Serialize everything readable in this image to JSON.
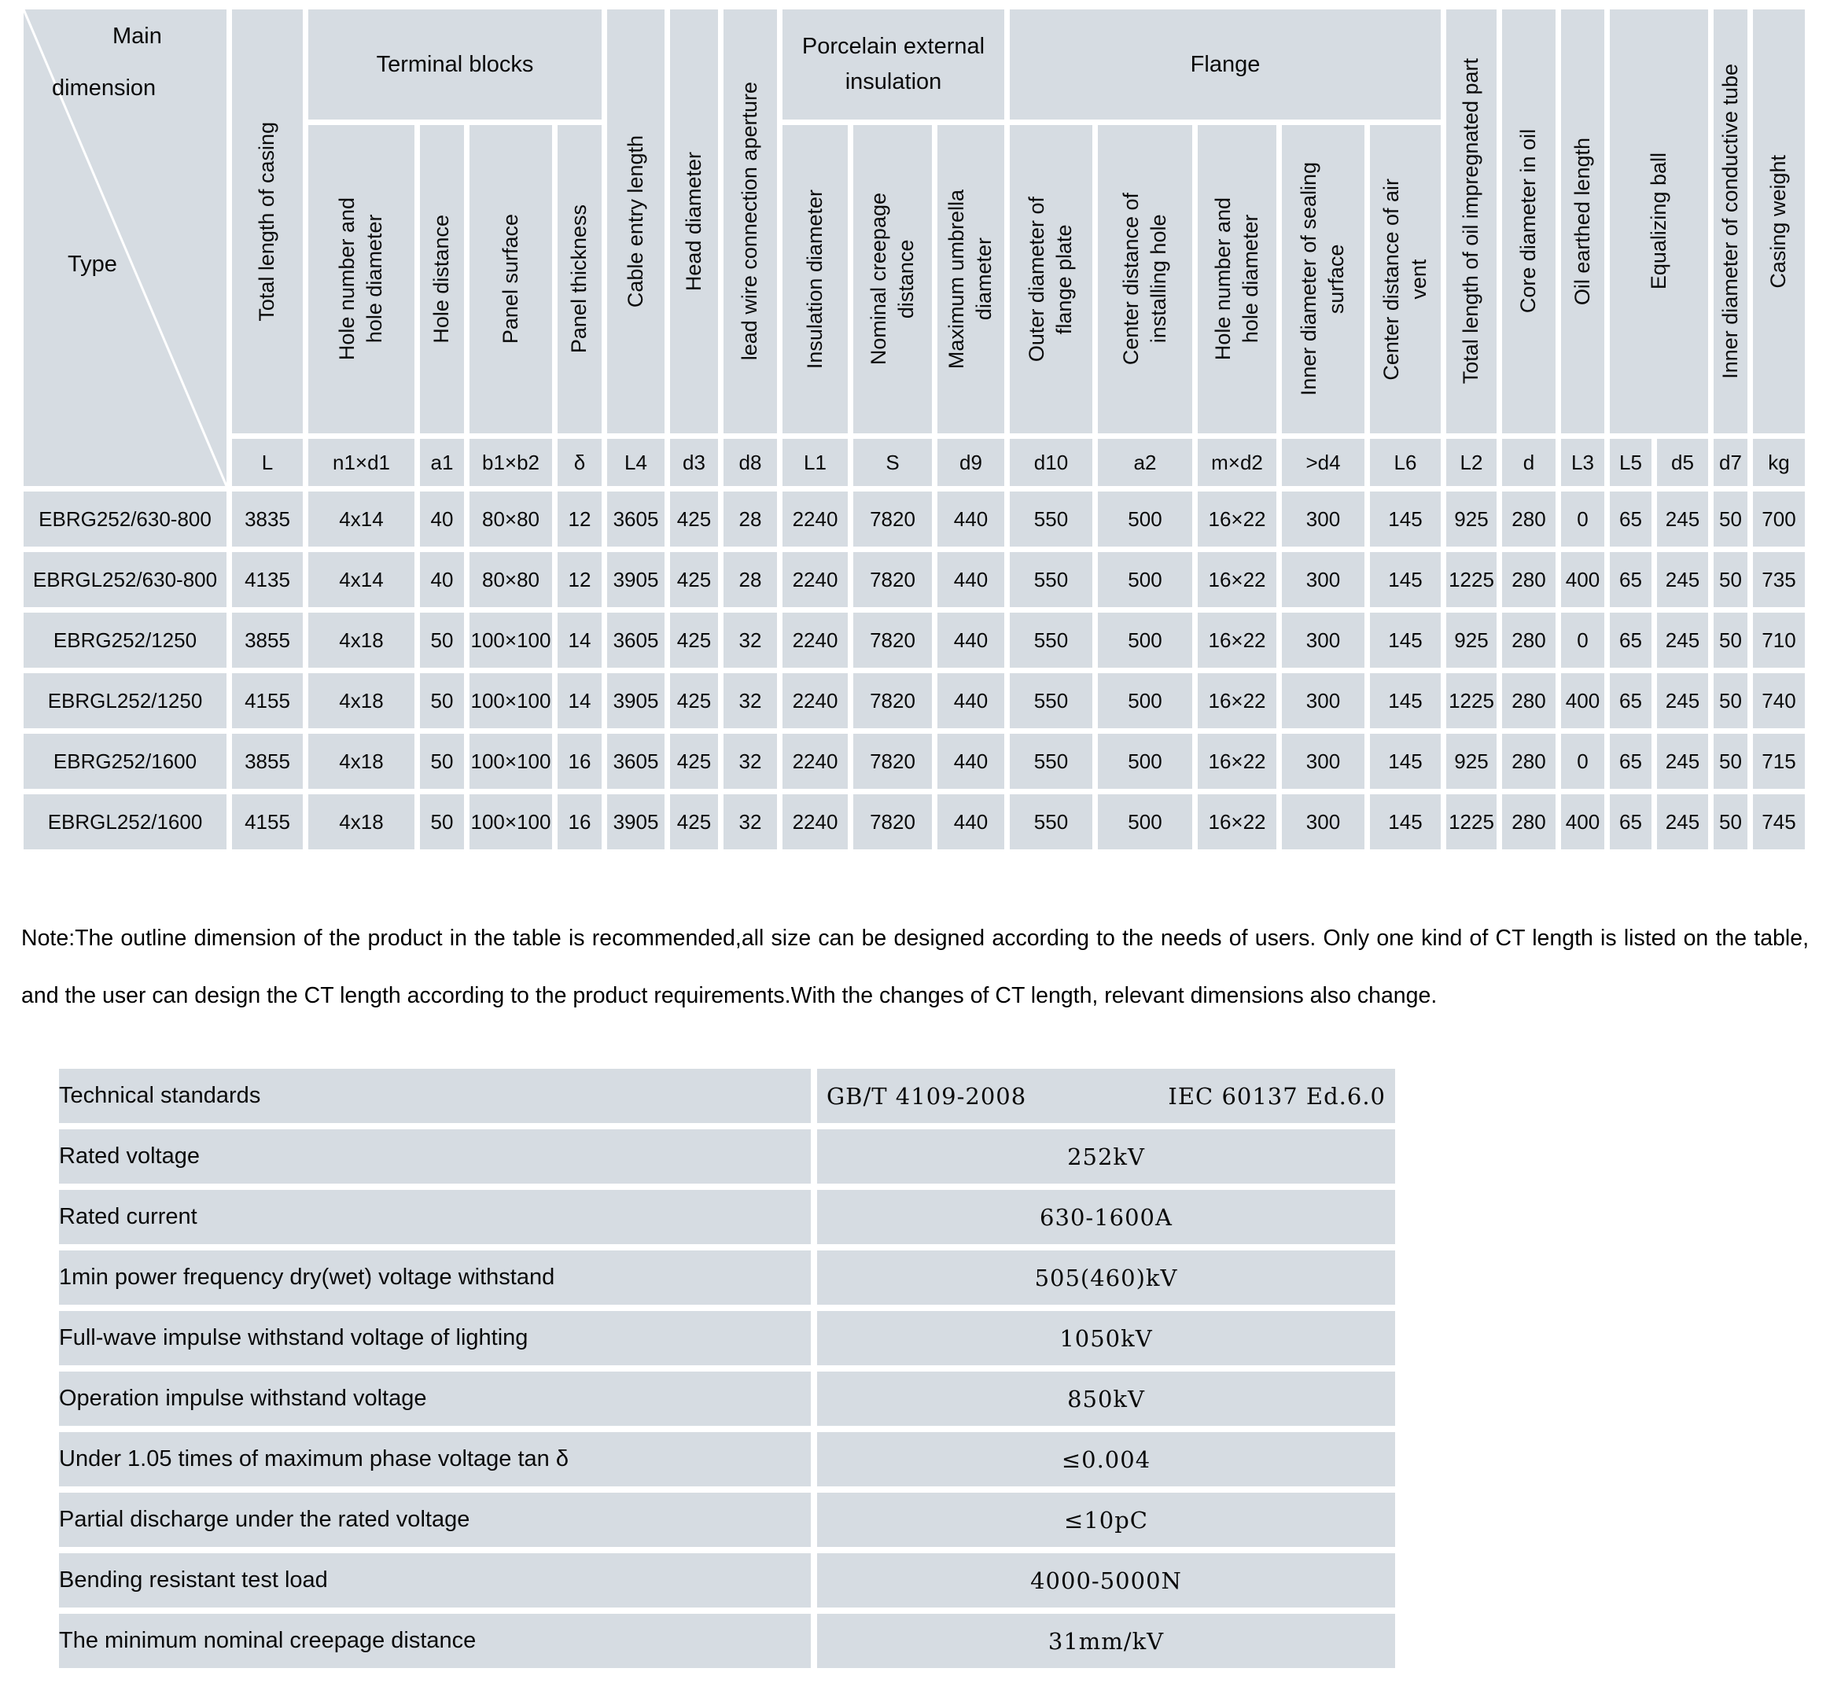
{
  "dimension_table": {
    "corner": {
      "main": "Main",
      "dimension": "dimension",
      "type": "Type"
    },
    "groups": {
      "terminal_blocks": "Terminal blocks",
      "porcelain": "Porcelain external\ninsulation",
      "flange": "Flange"
    },
    "columns": [
      {
        "label": "Total length of casing",
        "symbol": "L"
      },
      {
        "label": "Hole number and\nhole diameter",
        "symbol": "n1×d1"
      },
      {
        "label": "Hole distance",
        "symbol": "a1"
      },
      {
        "label": "Panel surface",
        "symbol": "b1×b2"
      },
      {
        "label": "Panel thickness",
        "symbol": "δ"
      },
      {
        "label": "Cable entry length",
        "symbol": "L4"
      },
      {
        "label": "Head diameter",
        "symbol": "d3"
      },
      {
        "label": "lead wire connection aperture",
        "symbol": "d8"
      },
      {
        "label": "Insulation diameter",
        "symbol": "L1"
      },
      {
        "label": "Nominal creepage\ndistance",
        "symbol": "S"
      },
      {
        "label": "Maximum umbrella\ndiameter",
        "symbol": "d9"
      },
      {
        "label": "Outer diameter of\nflange plate",
        "symbol": "d10"
      },
      {
        "label": "Center distance of\ninstalling hole",
        "symbol": "a2"
      },
      {
        "label": "Hole number and\nhole diameter",
        "symbol": "m×d2"
      },
      {
        "label": "Inner diameter of sealing\nsurface",
        "symbol": ">d4"
      },
      {
        "label": "Center distance of air\nvent",
        "symbol": "L6"
      },
      {
        "label": "Total length of oil impregnated part",
        "symbol": "L2"
      },
      {
        "label": "Core diameter in oil",
        "symbol": "d"
      },
      {
        "label": "Oil earthed length",
        "symbol": "L3"
      },
      {
        "label": "Equalizing ball",
        "symbol": "L5",
        "symbol2": "d5"
      },
      {
        "label": "Inner diameter of conductive tube",
        "symbol": "d7"
      },
      {
        "label": "Casing weight",
        "symbol": "kg"
      }
    ],
    "rows": [
      {
        "type": "EBRG252/630-800",
        "values": [
          "3835",
          "4x14",
          "40",
          "80×80",
          "12",
          "3605",
          "425",
          "28",
          "2240",
          "7820",
          "440",
          "550",
          "500",
          "16×22",
          "300",
          "145",
          "925",
          "280",
          "0",
          "65",
          "245",
          "50",
          "700"
        ]
      },
      {
        "type": "EBRGL252/630-800",
        "values": [
          "4135",
          "4x14",
          "40",
          "80×80",
          "12",
          "3905",
          "425",
          "28",
          "2240",
          "7820",
          "440",
          "550",
          "500",
          "16×22",
          "300",
          "145",
          "1225",
          "280",
          "400",
          "65",
          "245",
          "50",
          "735"
        ]
      },
      {
        "type": "EBRG252/1250",
        "values": [
          "3855",
          "4x18",
          "50",
          "100×100",
          "14",
          "3605",
          "425",
          "32",
          "2240",
          "7820",
          "440",
          "550",
          "500",
          "16×22",
          "300",
          "145",
          "925",
          "280",
          "0",
          "65",
          "245",
          "50",
          "710"
        ]
      },
      {
        "type": "EBRGL252/1250",
        "values": [
          "4155",
          "4x18",
          "50",
          "100×100",
          "14",
          "3905",
          "425",
          "32",
          "2240",
          "7820",
          "440",
          "550",
          "500",
          "16×22",
          "300",
          "145",
          "1225",
          "280",
          "400",
          "65",
          "245",
          "50",
          "740"
        ]
      },
      {
        "type": "EBRG252/1600",
        "values": [
          "3855",
          "4x18",
          "50",
          "100×100",
          "16",
          "3605",
          "425",
          "32",
          "2240",
          "7820",
          "440",
          "550",
          "500",
          "16×22",
          "300",
          "145",
          "925",
          "280",
          "0",
          "65",
          "245",
          "50",
          "715"
        ]
      },
      {
        "type": "EBRGL252/1600",
        "values": [
          "4155",
          "4x18",
          "50",
          "100×100",
          "16",
          "3905",
          "425",
          "32",
          "2240",
          "7820",
          "440",
          "550",
          "500",
          "16×22",
          "300",
          "145",
          "1225",
          "280",
          "400",
          "65",
          "245",
          "50",
          "745"
        ]
      }
    ]
  },
  "note": "Note:The outline dimension of the product in the table is recommended,all size can be designed according to the needs of users. Only one kind of CT length is listed on the table, and the user can design the CT length according to the product requirements.With the changes of CT length, relevant dimensions also change.",
  "spec_table": {
    "rows": [
      {
        "label": "Technical standards",
        "value_left": "GB/T 4109-2008",
        "value_right": "IEC 60137 Ed.6.0"
      },
      {
        "label": "Rated voltage",
        "value": "252kV"
      },
      {
        "label": "Rated current",
        "value": "630-1600A"
      },
      {
        "label": "1min power frequency dry(wet) voltage withstand",
        "value": "505(460)kV"
      },
      {
        "label": "Full-wave impulse withstand voltage of lighting",
        "value": "1050kV"
      },
      {
        "label": "Operation impulse withstand voltage",
        "value": "850kV"
      },
      {
        "label": "Under 1.05 times of maximum phase voltage tan δ",
        "value": "≤0.004"
      },
      {
        "label": "Partial discharge under the rated voltage",
        "value": "≤10pC"
      },
      {
        "label": "Bending resistant test load",
        "value": "4000-5000N"
      },
      {
        "label": "The minimum nominal creepage distance",
        "value": "31mm/kV"
      }
    ]
  },
  "colors": {
    "cell_background": "#d6dce2",
    "grid_gap": "#ffffff",
    "text": "#0a0a0a"
  }
}
